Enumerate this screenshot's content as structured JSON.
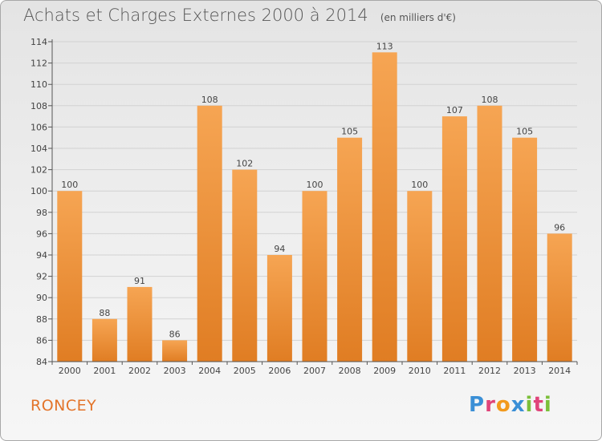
{
  "header": {
    "title": "Achats et Charges Externes 2000 à 2014",
    "subtitle": "(en milliers d'€)"
  },
  "footer": {
    "commune": "RONCEY",
    "logo_letters": [
      "P",
      "r",
      "o",
      "x",
      "i",
      "t",
      "i"
    ],
    "logo_colors": [
      "#3a8fd6",
      "#e0447a",
      "#f29a1e",
      "#3a8fd6",
      "#7cbf3a",
      "#e0447a",
      "#7cbf3a"
    ]
  },
  "colors": {
    "bar_light": "#f6a553",
    "bar_dark": "#e07d23",
    "grid": "#d2d2d2",
    "axis": "#555555",
    "label": "#444444"
  },
  "chart_data": {
    "type": "bar",
    "title": "Achats et Charges Externes 2000 à 2014",
    "subtitle": "(en milliers d'€)",
    "categories": [
      "2000",
      "2001",
      "2002",
      "2003",
      "2004",
      "2005",
      "2006",
      "2007",
      "2008",
      "2009",
      "2010",
      "2011",
      "2012",
      "2013",
      "2014"
    ],
    "values": [
      100,
      88,
      91,
      86,
      108,
      102,
      94,
      100,
      105,
      113,
      100,
      107,
      108,
      105,
      96
    ],
    "ylim": [
      84,
      114
    ],
    "yticks": [
      84,
      86,
      88,
      90,
      92,
      94,
      96,
      98,
      100,
      102,
      104,
      106,
      108,
      110,
      112,
      114
    ],
    "grid": true,
    "xlabel": "",
    "ylabel": ""
  }
}
